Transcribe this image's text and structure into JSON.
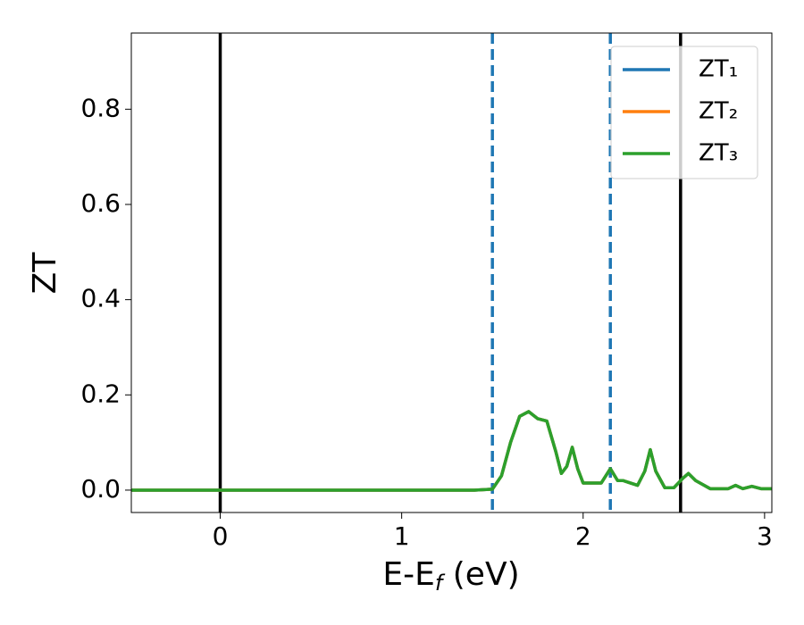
{
  "chart_data": {
    "type": "line",
    "xlabel": [
      "E-E",
      "f",
      " (eV)"
    ],
    "ylabel": "ZT",
    "xlim": [
      -0.49,
      3.04
    ],
    "ylim": [
      -0.047,
      0.96
    ],
    "xticks": [
      0,
      1,
      2,
      3
    ],
    "yticks": [
      {
        "value": 0,
        "label": "0.0"
      },
      0.2,
      0.4,
      0.6,
      0.8
    ],
    "legend": "upper right",
    "x": [
      -0.49,
      0,
      0.5,
      1.0,
      1.4,
      1.5,
      1.55,
      1.6,
      1.65,
      1.7,
      1.75,
      1.8,
      1.85,
      1.88,
      1.91,
      1.94,
      1.97,
      2.0,
      2.05,
      2.1,
      2.15,
      2.19,
      2.22,
      2.26,
      2.3,
      2.34,
      2.37,
      2.4,
      2.45,
      2.5,
      2.55,
      2.58,
      2.62,
      2.7,
      2.8,
      2.84,
      2.88,
      2.93,
      2.98,
      3.04
    ],
    "series": [
      {
        "name": "ZT₁",
        "color": "#1f77b4",
        "values": [
          0,
          0,
          0,
          0,
          0,
          0.002,
          0.03,
          0.1,
          0.155,
          0.165,
          0.15,
          0.145,
          0.08,
          0.035,
          0.05,
          0.09,
          0.045,
          0.015,
          0.015,
          0.015,
          0.045,
          0.02,
          0.02,
          0.015,
          0.01,
          0.04,
          0.085,
          0.04,
          0.005,
          0.005,
          0.025,
          0.035,
          0.02,
          0.003,
          0.003,
          0.01,
          0.003,
          0.008,
          0.003,
          0.003
        ]
      },
      {
        "name": "ZT₂",
        "color": "#ff7f0e",
        "values": [
          0,
          0,
          0,
          0,
          0,
          0.002,
          0.03,
          0.1,
          0.155,
          0.165,
          0.15,
          0.145,
          0.08,
          0.035,
          0.05,
          0.09,
          0.045,
          0.015,
          0.015,
          0.015,
          0.045,
          0.02,
          0.02,
          0.015,
          0.01,
          0.04,
          0.085,
          0.04,
          0.005,
          0.005,
          0.025,
          0.035,
          0.02,
          0.003,
          0.003,
          0.01,
          0.003,
          0.008,
          0.003,
          0.003
        ]
      },
      {
        "name": "ZT₃",
        "color": "#2ca02c",
        "values": [
          0,
          0,
          0,
          0,
          0,
          0.002,
          0.03,
          0.1,
          0.155,
          0.165,
          0.15,
          0.145,
          0.08,
          0.035,
          0.05,
          0.09,
          0.045,
          0.015,
          0.015,
          0.015,
          0.045,
          0.02,
          0.02,
          0.015,
          0.01,
          0.04,
          0.085,
          0.04,
          0.005,
          0.005,
          0.025,
          0.035,
          0.02,
          0.003,
          0.003,
          0.01,
          0.003,
          0.008,
          0.003,
          0.003
        ]
      }
    ],
    "vlines": [
      {
        "x": 0,
        "color": "#000000",
        "style": "solid"
      },
      {
        "x": 2.537,
        "color": "#000000",
        "style": "solid"
      },
      {
        "x": 1.5,
        "color": "#1f77b4",
        "style": "dashed"
      },
      {
        "x": 2.15,
        "color": "#1f77b4",
        "style": "dashed"
      }
    ]
  }
}
